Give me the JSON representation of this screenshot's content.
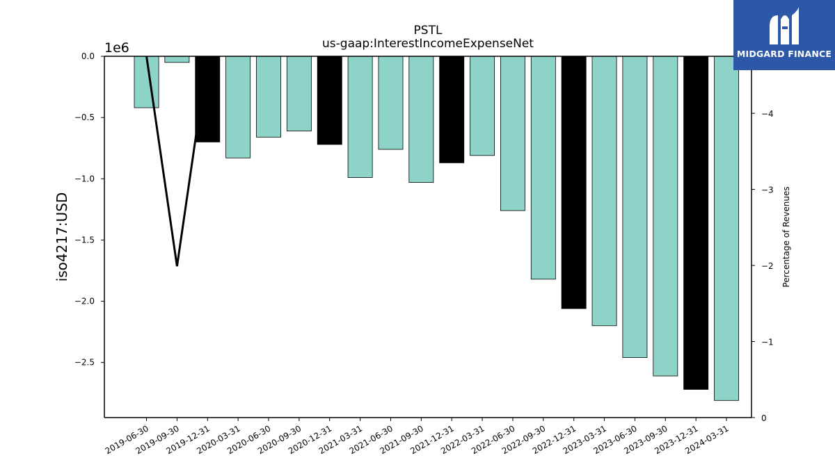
{
  "brand": {
    "name": "MIDGARD FINANCE",
    "color": "#2d58a8"
  },
  "chart_data": {
    "type": "bar",
    "title": "PSTL",
    "subtitle": "us-gaap:InterestIncomeExpenseNet",
    "ylabel": "iso4217:USD",
    "y_offset_text": "1e6",
    "y2label": "Percentage of Revenues",
    "categories": [
      "2019-06-30",
      "2019-09-30",
      "2019-12-31",
      "2020-03-31",
      "2020-06-30",
      "2020-09-30",
      "2020-12-31",
      "2021-03-31",
      "2021-06-30",
      "2021-09-30",
      "2021-12-31",
      "2022-03-31",
      "2022-06-30",
      "2022-09-30",
      "2022-12-31",
      "2023-03-31",
      "2023-06-30",
      "2023-09-30",
      "2023-12-31",
      "2024-03-31"
    ],
    "values": [
      -0.42,
      -0.05,
      -0.7,
      -0.83,
      -0.66,
      -0.61,
      -0.72,
      -0.99,
      -0.76,
      -1.03,
      -0.87,
      -0.81,
      -1.26,
      -1.82,
      -2.06,
      -2.2,
      -2.46,
      -2.61,
      -2.72,
      -2.81
    ],
    "values_unit": "millions USD (1e6)",
    "bar_colors": [
      "#8dd3c7",
      "#8dd3c7",
      "#000000",
      "#8dd3c7",
      "#8dd3c7",
      "#8dd3c7",
      "#000000",
      "#8dd3c7",
      "#8dd3c7",
      "#8dd3c7",
      "#000000",
      "#8dd3c7",
      "#8dd3c7",
      "#8dd3c7",
      "#000000",
      "#8dd3c7",
      "#8dd3c7",
      "#8dd3c7",
      "#000000",
      "#8dd3c7"
    ],
    "ylim": [
      -2.95,
      0.0
    ],
    "yticks": [
      0.0,
      -0.5,
      -1.0,
      -1.5,
      -2.0,
      -2.5
    ],
    "ytick_labels": [
      "0.0",
      "−0.5",
      "−1.0",
      "−1.5",
      "−2.0",
      "−2.5"
    ],
    "line_series": {
      "x": [
        "2019-06-30",
        "2019-09-30",
        "2019-12-31"
      ],
      "values": [
        -4.75,
        -1.99,
        -4.75
      ],
      "color": "#000000"
    },
    "y2lim": [
      0,
      -4.75
    ],
    "y2ticks": [
      0,
      -1,
      -2,
      -3,
      -4
    ],
    "y2tick_labels": [
      "0",
      "−1",
      "−2",
      "−3",
      "−4"
    ],
    "grid": false,
    "legend": "none"
  }
}
